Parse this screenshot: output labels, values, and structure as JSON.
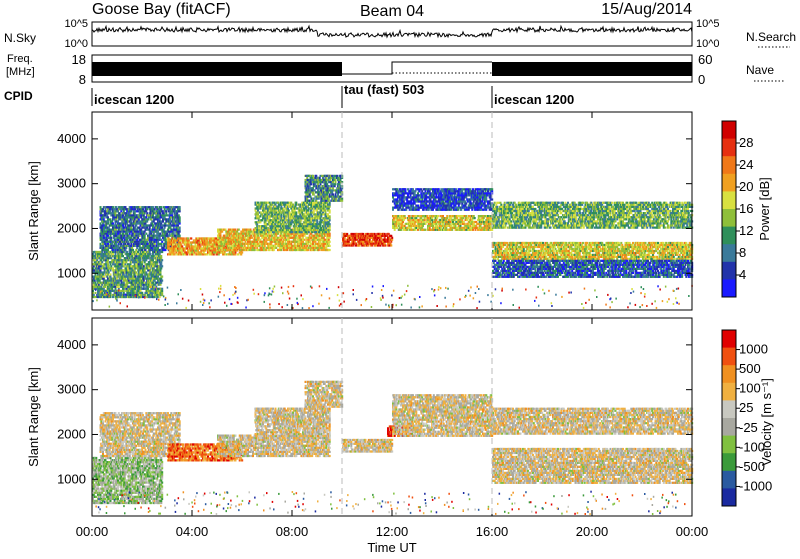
{
  "header": {
    "station": "Goose Bay (fitACF)",
    "beam": "Beam 04",
    "date": "15/Aug/2014"
  },
  "nsky_panel": {
    "left_label": "N.Sky",
    "left_ticks": [
      "10^5",
      "10^0"
    ],
    "right_ticks": [
      "10^5",
      "10^0"
    ],
    "right_label": "N.Search"
  },
  "freq_panel": {
    "left_label_1": "Freq.",
    "left_label_2": "[MHz]",
    "left_ticks": [
      "18",
      "8"
    ],
    "right_ticks": [
      "60",
      "0"
    ],
    "right_label": "Nave"
  },
  "cpid_panel": {
    "label": "CPID",
    "segments": [
      {
        "name": "icescan 1200",
        "start_h": 0,
        "end_h": 10
      },
      {
        "name": "tau (fast) 503",
        "start_h": 10,
        "end_h": 16
      },
      {
        "name": "icescan 1200",
        "start_h": 16,
        "end_h": 24
      }
    ]
  },
  "colors": {
    "power": [
      "#1a1aff",
      "#2233aa",
      "#3a7a9a",
      "#2f8f5a",
      "#8fbf3a",
      "#d8e040",
      "#f0a020",
      "#f07818",
      "#e63010",
      "#d00000"
    ],
    "velocity": [
      "#e00000",
      "#f05010",
      "#f09020",
      "#f0b040",
      "#c8c8c0",
      "#a8a8a0",
      "#80c040",
      "#3a9a3a",
      "#2a5aa0",
      "#1a2aa0"
    ]
  },
  "chart_data": [
    {
      "type": "heatmap",
      "name": "power",
      "ylabel": "Slant Range [km]",
      "xlabel": "Time UT",
      "x_ticks": [
        "00:00",
        "04:00",
        "08:00",
        "12:00",
        "16:00",
        "20:00",
        "00:00"
      ],
      "x_range_h": [
        0,
        24
      ],
      "y_ticks": [
        1000,
        2000,
        3000,
        4000
      ],
      "ylim": [
        180,
        4600
      ],
      "colorbar_label": "Power [dB]",
      "colorbar_ticks": [
        4,
        8,
        12,
        16,
        20,
        24,
        28
      ],
      "colorbar_range": [
        0,
        32
      ],
      "features": [
        {
          "t0": 0.0,
          "t1": 2.8,
          "r0": 450,
          "r1": 1500,
          "level": 0.35
        },
        {
          "t0": 0.3,
          "t1": 3.5,
          "r0": 1500,
          "r1": 2500,
          "level": 0.25
        },
        {
          "t0": 3.0,
          "t1": 6.0,
          "r0": 1400,
          "r1": 1800,
          "level": 0.65
        },
        {
          "t0": 5.0,
          "t1": 9.5,
          "r0": 1500,
          "r1": 2000,
          "level": 0.6
        },
        {
          "t0": 6.5,
          "t1": 9.5,
          "r0": 1900,
          "r1": 2600,
          "level": 0.4
        },
        {
          "t0": 8.5,
          "t1": 10.0,
          "r0": 2600,
          "r1": 3200,
          "level": 0.3
        },
        {
          "t0": 10.0,
          "t1": 12.0,
          "r0": 1600,
          "r1": 1900,
          "level": 0.85
        },
        {
          "t0": 12.0,
          "t1": 16.0,
          "r0": 1950,
          "r1": 2300,
          "level": 0.55
        },
        {
          "t0": 12.0,
          "t1": 16.0,
          "r0": 2400,
          "r1": 2900,
          "level": 0.15
        },
        {
          "t0": 16.0,
          "t1": 24.0,
          "r0": 1300,
          "r1": 1700,
          "level": 0.55
        },
        {
          "t0": 16.0,
          "t1": 24.0,
          "r0": 2000,
          "r1": 2600,
          "level": 0.4
        },
        {
          "t0": 16.0,
          "t1": 24.0,
          "r0": 900,
          "r1": 1300,
          "level": 0.2
        }
      ]
    },
    {
      "type": "heatmap",
      "name": "velocity",
      "ylabel": "Slant Range [km]",
      "xlabel": "Time UT",
      "x_ticks": [
        "00:00",
        "04:00",
        "08:00",
        "12:00",
        "16:00",
        "20:00",
        "00:00"
      ],
      "x_range_h": [
        0,
        24
      ],
      "y_ticks": [
        1000,
        2000,
        3000,
        4000
      ],
      "ylim": [
        180,
        4600
      ],
      "colorbar_label": "Velocity [m s⁻¹]",
      "colorbar_ticks": [
        "1000",
        "500",
        "100",
        "25",
        "-25",
        "-100",
        "-500",
        "-1000"
      ],
      "features": [
        {
          "t0": 0.0,
          "t1": 2.8,
          "r0": 450,
          "r1": 1500,
          "level": 0.6
        },
        {
          "t0": 0.3,
          "t1": 3.5,
          "r0": 1500,
          "r1": 2500,
          "level": 0.45
        },
        {
          "t0": 3.0,
          "t1": 6.0,
          "r0": 1400,
          "r1": 1800,
          "level": 0.2
        },
        {
          "t0": 5.0,
          "t1": 9.5,
          "r0": 1500,
          "r1": 2000,
          "level": 0.45
        },
        {
          "t0": 6.5,
          "t1": 9.5,
          "r0": 1900,
          "r1": 2600,
          "level": 0.45
        },
        {
          "t0": 8.5,
          "t1": 10.0,
          "r0": 2600,
          "r1": 3200,
          "level": 0.45
        },
        {
          "t0": 10.0,
          "t1": 12.0,
          "r0": 1600,
          "r1": 1900,
          "level": 0.45
        },
        {
          "t0": 11.8,
          "t1": 12.8,
          "r0": 1950,
          "r1": 2200,
          "level": 0.05
        },
        {
          "t0": 12.0,
          "t1": 16.0,
          "r0": 1950,
          "r1": 2900,
          "level": 0.45
        },
        {
          "t0": 16.0,
          "t1": 24.0,
          "r0": 1300,
          "r1": 1700,
          "level": 0.45
        },
        {
          "t0": 16.0,
          "t1": 24.0,
          "r0": 2000,
          "r1": 2600,
          "level": 0.45
        },
        {
          "t0": 16.0,
          "t1": 24.0,
          "r0": 900,
          "r1": 1300,
          "level": 0.45
        }
      ]
    }
  ]
}
